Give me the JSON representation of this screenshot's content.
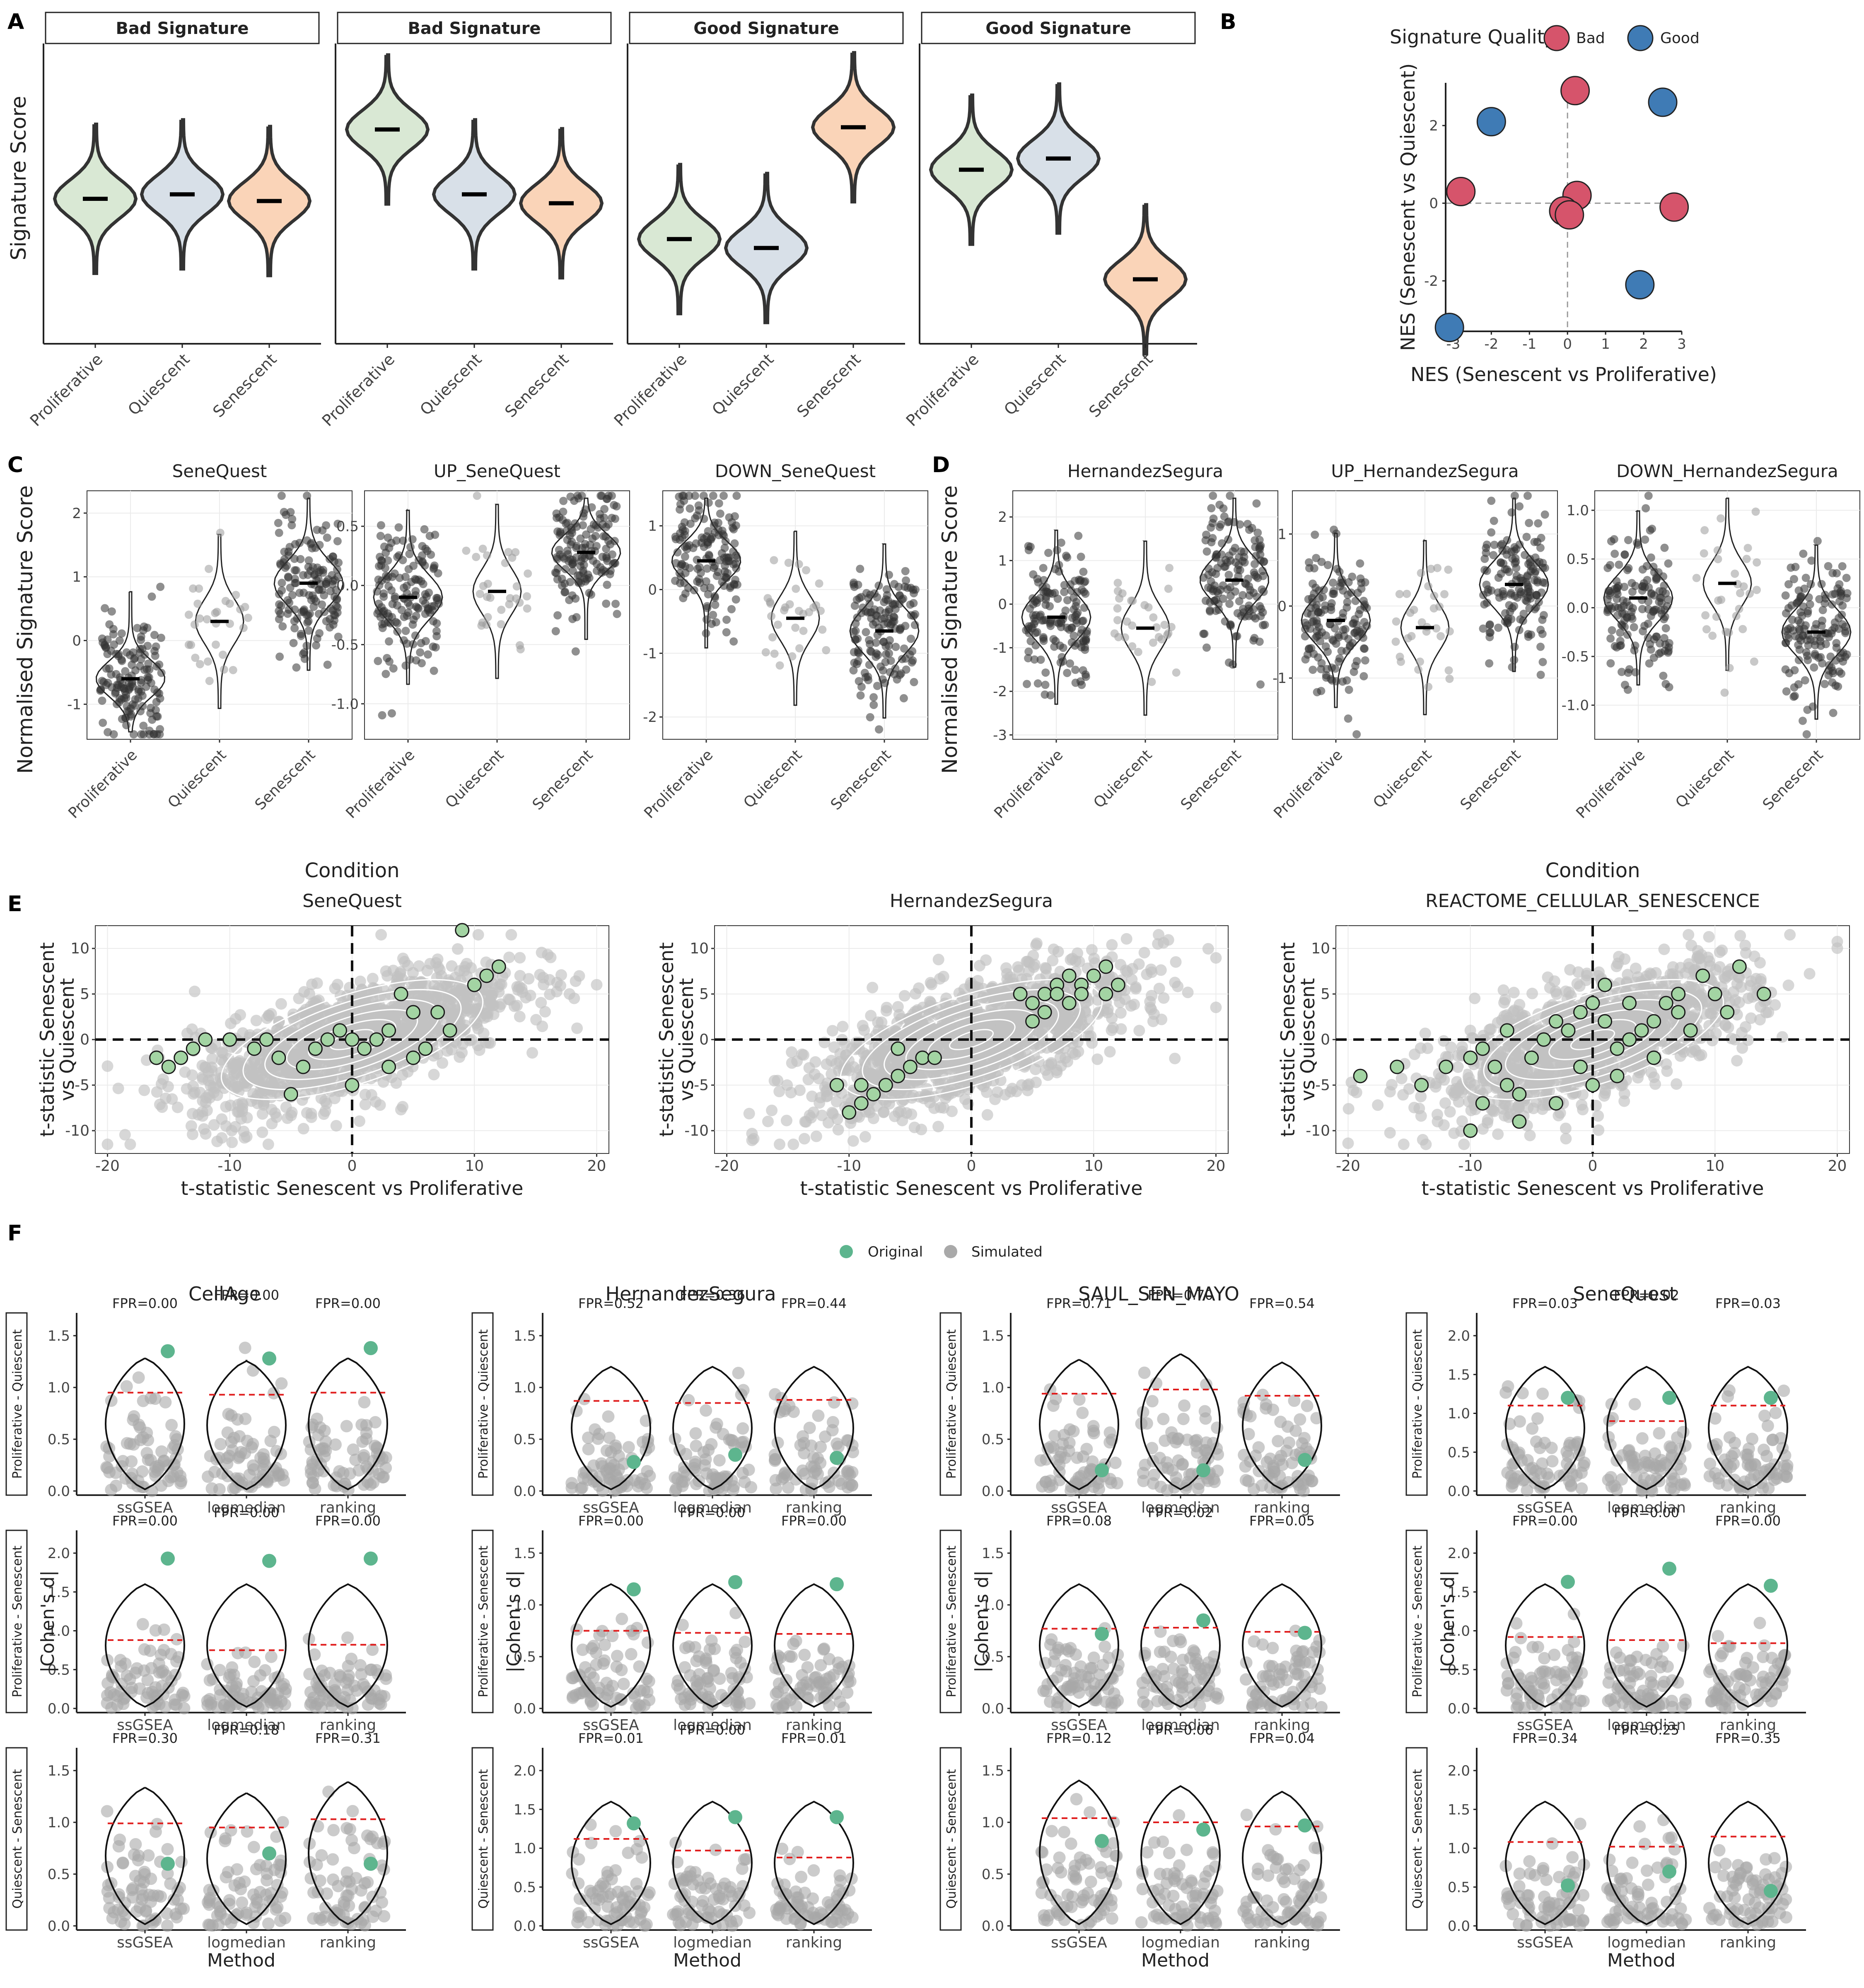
{
  "colors": {
    "prolif_fill": "#d9e8d4",
    "quies_fill": "#d8e0e8",
    "senes_fill": "#fad4b8",
    "bad": "#d6546b",
    "good": "#3f7bb5",
    "original": "#5db58e",
    "simulated": "#a9a9a9",
    "background_points": "#c2c2c2",
    "highlight_points": "#a3d4a3",
    "threshold": "#e01d1d"
  },
  "panel_labels": [
    "A",
    "B",
    "C",
    "D",
    "E",
    "F"
  ],
  "panel_a": {
    "ylabel": "Signature Score",
    "categories": [
      "Proliferative",
      "Quiescent",
      "Senescent"
    ],
    "facets": [
      {
        "strip": "Bad Signature",
        "medians": [
          0.0,
          0.1,
          -0.05
        ]
      },
      {
        "strip": "Bad Signature",
        "medians": [
          1.55,
          0.1,
          -0.1
        ]
      },
      {
        "strip": "Good Signature",
        "medians": [
          -0.9,
          -1.1,
          1.6
        ]
      },
      {
        "strip": "Good Signature",
        "medians": [
          0.65,
          0.9,
          -1.8
        ]
      }
    ]
  },
  "panel_b": {
    "legend_title": "Signature Quality",
    "legend": [
      "Bad",
      "Good"
    ],
    "xlabel": "NES (Senescent vs Proliferative)",
    "ylabel": "NES (Senescent vs Quiescent)",
    "xticks": [
      "-3",
      "-2",
      "-1",
      "0",
      "1",
      "2",
      "3"
    ],
    "yticks": [
      "2",
      "0",
      "-2"
    ]
  },
  "panel_c": {
    "ylabel": "Normalised Signature Score",
    "categories": [
      "Proliferative",
      "Quiescent",
      "Senescent"
    ],
    "facets": [
      {
        "title": "SeneQuest",
        "yticks": [
          "2",
          "1",
          "0",
          "-1"
        ],
        "medians": [
          -0.6,
          0.3,
          0.9
        ]
      },
      {
        "title": "UP_SeneQuest",
        "yticks": [
          "0.5",
          "0.0",
          "-0.5",
          "-1.0"
        ],
        "medians": [
          -0.1,
          -0.05,
          0.28
        ]
      },
      {
        "title": "DOWN_SeneQuest",
        "yticks": [
          "1",
          "0",
          "-1",
          "-2"
        ],
        "medians": [
          0.45,
          -0.45,
          -0.65
        ]
      }
    ]
  },
  "panel_d": {
    "ylabel": "Normalised Signature Score",
    "categories": [
      "Proliferative",
      "Quiescent",
      "Senescent"
    ],
    "facets": [
      {
        "title": "HernandezSegura",
        "yticks": [
          "2",
          "1",
          "0",
          "-1",
          "-2",
          "-3"
        ],
        "medians": [
          -0.3,
          -0.55,
          0.55
        ]
      },
      {
        "title": "UP_HernandezSegura",
        "yticks": [
          "1",
          "0",
          "-1"
        ],
        "medians": [
          -0.2,
          -0.3,
          0.3
        ]
      },
      {
        "title": "DOWN_HernandezSegura",
        "yticks": [
          "1.0",
          "0.5",
          "0.0",
          "-0.5",
          "-1.0"
        ],
        "medians": [
          0.1,
          0.25,
          -0.25
        ]
      }
    ]
  },
  "panel_e": {
    "condition_title": "Condition",
    "xlabel": "t-statistic Senescent vs Proliferative",
    "ylabel_1": "t-statistic Senescent",
    "ylabel_2": "vs Quiescent",
    "xticks": [
      "-20",
      "-10",
      "0",
      "10",
      "20"
    ],
    "yticks": [
      "10",
      "5",
      "0",
      "-5",
      "-10"
    ],
    "facets": [
      {
        "title": "SeneQuest",
        "show_condition": true
      },
      {
        "title": "HernandezSegura",
        "show_condition": false
      },
      {
        "title": "REACTOME_CELLULAR_SENESCENCE",
        "show_condition": true
      }
    ]
  },
  "panel_f": {
    "legend": [
      "Original",
      "Simulated"
    ],
    "methods": [
      "ssGSEA",
      "logmedian",
      "ranking"
    ],
    "xlabel": "Method",
    "ylabel": "|Cohen's d|",
    "row_strips": [
      "Proliferative - Quiescent",
      "Proliferative - Senescent",
      "Quiescent - Senescent"
    ],
    "signatures": [
      "CellAge",
      "HernandezSegura",
      "SAUL_SEN_MAYO",
      "SeneQuest"
    ],
    "chart_data": {
      "type": "violin",
      "cells": [
        {
          "sig": "CellAge",
          "row": 0,
          "ymax": 1.5,
          "yticks": [
            "1.5",
            "1.0",
            "0.5",
            "0.0"
          ],
          "fpr": [
            "FPR=0.00",
            "FPR=0.00",
            "FPR=0.00"
          ],
          "orig": [
            1.35,
            1.28,
            1.38
          ],
          "thr": [
            0.95,
            0.93,
            0.95
          ]
        },
        {
          "sig": "HernandezSegura",
          "row": 0,
          "ymax": 1.5,
          "yticks": [
            "1.5",
            "1.0",
            "0.5",
            "0.0"
          ],
          "fpr": [
            "FPR=0.52",
            "FPR=0.36",
            "FPR=0.44"
          ],
          "orig": [
            0.28,
            0.35,
            0.32
          ],
          "thr": [
            0.87,
            0.85,
            0.88
          ]
        },
        {
          "sig": "SAUL_SEN_MAYO",
          "row": 0,
          "ymax": 1.5,
          "yticks": [
            "1.5",
            "1.0",
            "0.5",
            "0.0"
          ],
          "fpr": [
            "FPR=0.71",
            "FPR=0.70",
            "FPR=0.54"
          ],
          "orig": [
            0.2,
            0.2,
            0.3
          ],
          "thr": [
            0.94,
            0.98,
            0.92
          ]
        },
        {
          "sig": "SeneQuest",
          "row": 0,
          "ymax": 2.0,
          "yticks": [
            "2.0",
            "1.5",
            "1.0",
            "0.5",
            "0.0"
          ],
          "fpr": [
            "FPR=0.03",
            "FPR=0.02",
            "FPR=0.03"
          ],
          "orig": [
            1.2,
            1.2,
            1.2
          ],
          "thr": [
            1.1,
            0.9,
            1.1
          ]
        },
        {
          "sig": "CellAge",
          "row": 1,
          "ymax": 2.0,
          "yticks": [
            "2.0",
            "1.5",
            "1.0",
            "0.5",
            "0.0"
          ],
          "fpr": [
            "FPR=0.00",
            "FPR=0.00",
            "FPR=0.00"
          ],
          "orig": [
            1.93,
            1.9,
            1.93
          ],
          "thr": [
            0.88,
            0.75,
            0.82
          ]
        },
        {
          "sig": "HernandezSegura",
          "row": 1,
          "ymax": 1.5,
          "yticks": [
            "1.5",
            "1.0",
            "0.5",
            "0.0"
          ],
          "fpr": [
            "FPR=0.00",
            "FPR=0.00",
            "FPR=0.00"
          ],
          "orig": [
            1.15,
            1.22,
            1.2
          ],
          "thr": [
            0.75,
            0.73,
            0.72
          ]
        },
        {
          "sig": "SAUL_SEN_MAYO",
          "row": 1,
          "ymax": 1.5,
          "yticks": [
            "1.5",
            "1.0",
            "0.5",
            "0.0"
          ],
          "fpr": [
            "FPR=0.08",
            "FPR=0.02",
            "FPR=0.05"
          ],
          "orig": [
            0.72,
            0.85,
            0.73
          ],
          "thr": [
            0.77,
            0.78,
            0.74
          ]
        },
        {
          "sig": "SeneQuest",
          "row": 1,
          "ymax": 2.0,
          "yticks": [
            "2.0",
            "1.5",
            "1.0",
            "0.5",
            "0.0"
          ],
          "fpr": [
            "FPR=0.00",
            "FPR=0.00",
            "FPR=0.00"
          ],
          "orig": [
            1.63,
            1.8,
            1.58
          ],
          "thr": [
            0.92,
            0.88,
            0.84
          ]
        },
        {
          "sig": "CellAge",
          "row": 2,
          "ymax": 1.5,
          "yticks": [
            "1.5",
            "1.0",
            "0.5",
            "0.0"
          ],
          "fpr": [
            "FPR=0.30",
            "FPR=0.18",
            "FPR=0.31"
          ],
          "orig": [
            0.6,
            0.7,
            0.6
          ],
          "thr": [
            0.99,
            0.95,
            1.03
          ]
        },
        {
          "sig": "HernandezSegura",
          "row": 2,
          "ymax": 2.0,
          "yticks": [
            "2.0",
            "1.5",
            "1.0",
            "0.5",
            "0.0"
          ],
          "fpr": [
            "FPR=0.01",
            "FPR=0.00",
            "FPR=0.01"
          ],
          "orig": [
            1.32,
            1.4,
            1.4
          ],
          "thr": [
            1.12,
            0.97,
            0.88
          ]
        },
        {
          "sig": "SAUL_SEN_MAYO",
          "row": 2,
          "ymax": 1.5,
          "yticks": [
            "1.5",
            "1.0",
            "0.5",
            "0.0"
          ],
          "fpr": [
            "FPR=0.12",
            "FPR=0.06",
            "FPR=0.04"
          ],
          "orig": [
            0.82,
            0.93,
            0.97
          ],
          "thr": [
            1.04,
            1.0,
            0.96
          ]
        },
        {
          "sig": "SeneQuest",
          "row": 2,
          "ymax": 2.0,
          "yticks": [
            "2.0",
            "1.5",
            "1.0",
            "0.5",
            "0.0"
          ],
          "fpr": [
            "FPR=0.34",
            "FPR=0.25",
            "FPR=0.35"
          ],
          "orig": [
            0.52,
            0.7,
            0.45
          ],
          "thr": [
            1.08,
            1.02,
            1.15
          ]
        }
      ]
    }
  },
  "chart_data": [
    {
      "type": "scatter",
      "panel": "B",
      "title": "",
      "xlabel": "NES (Senescent vs Proliferative)",
      "ylabel": "NES (Senescent vs Quiescent)",
      "xlim": [
        -3.2,
        3.0
      ],
      "ylim": [
        -3.3,
        3.1
      ],
      "series": [
        {
          "name": "Bad",
          "points": [
            [
              0.2,
              2.9
            ],
            [
              -2.8,
              0.3
            ],
            [
              0.25,
              0.2
            ],
            [
              -0.1,
              -0.2
            ],
            [
              0.05,
              -0.3
            ],
            [
              2.8,
              -0.1
            ]
          ]
        },
        {
          "name": "Good",
          "points": [
            [
              -2.0,
              2.1
            ],
            [
              2.5,
              2.6
            ],
            [
              1.9,
              -2.1
            ],
            [
              -3.1,
              -3.2
            ]
          ]
        }
      ]
    }
  ]
}
